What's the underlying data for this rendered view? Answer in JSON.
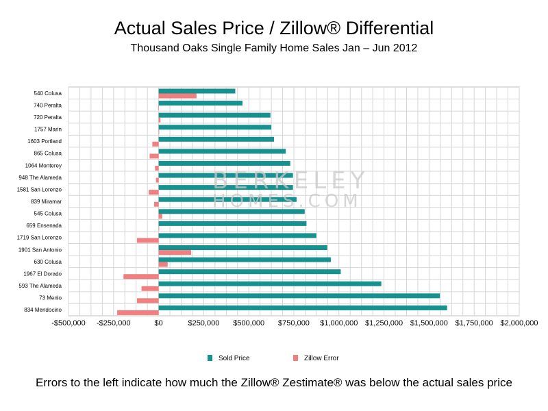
{
  "header": {
    "title": "Actual Sales Price / Zillow® Differential",
    "subtitle": "Thousand Oaks Single Family Home Sales Jan – Jun 2012"
  },
  "footnote": "Errors to the left indicate how much the Zillow® Zestimate® was below the actual sales price",
  "watermark": {
    "line1": "BERKELEY",
    "line2": "HOMES.COM"
  },
  "chart_data": {
    "type": "bar",
    "orientation": "horizontal",
    "categories": [
      "540 Colusa",
      "740 Peralta",
      "720 Peralta",
      "1757 Marin",
      "1603 Portland",
      "865 Colusa",
      "1064 Monterey",
      "948 The Alameda",
      "1581 San Lorenzo",
      "839 Miramar",
      "545 Colusa",
      "659 Ensenada",
      "1719 San Lorenzo",
      "1901 San Antonio",
      "630 Colusa",
      "1967 El Dorado",
      "593 The Alameda",
      "73 Menlo",
      "834 Mendocino"
    ],
    "series": [
      {
        "name": "Sold Price",
        "color": "#17918f",
        "values": [
          425000,
          465000,
          620000,
          625000,
          640000,
          705000,
          730000,
          745000,
          745000,
          765000,
          810000,
          820000,
          875000,
          935000,
          955000,
          1010000,
          1235000,
          1560000,
          1600000
        ]
      },
      {
        "name": "Zillow Error",
        "color": "#f08080",
        "values": [
          210000,
          -3000,
          10000,
          0,
          -35000,
          -50000,
          -20000,
          -15000,
          -55000,
          -25000,
          20000,
          0,
          -120000,
          180000,
          50000,
          -195000,
          -95000,
          -120000,
          -230000
        ]
      }
    ],
    "xticks": [
      "-$500,000",
      "-$250,000",
      "$0",
      "$250,000",
      "$500,000",
      "$750,000",
      "$1,000,000",
      "$1,250,000",
      "$1,500,000",
      "$1,750,000",
      "$2,000,000"
    ],
    "xlim": [
      -500000,
      2000000
    ],
    "grid": true,
    "legend_position": "bottom"
  }
}
